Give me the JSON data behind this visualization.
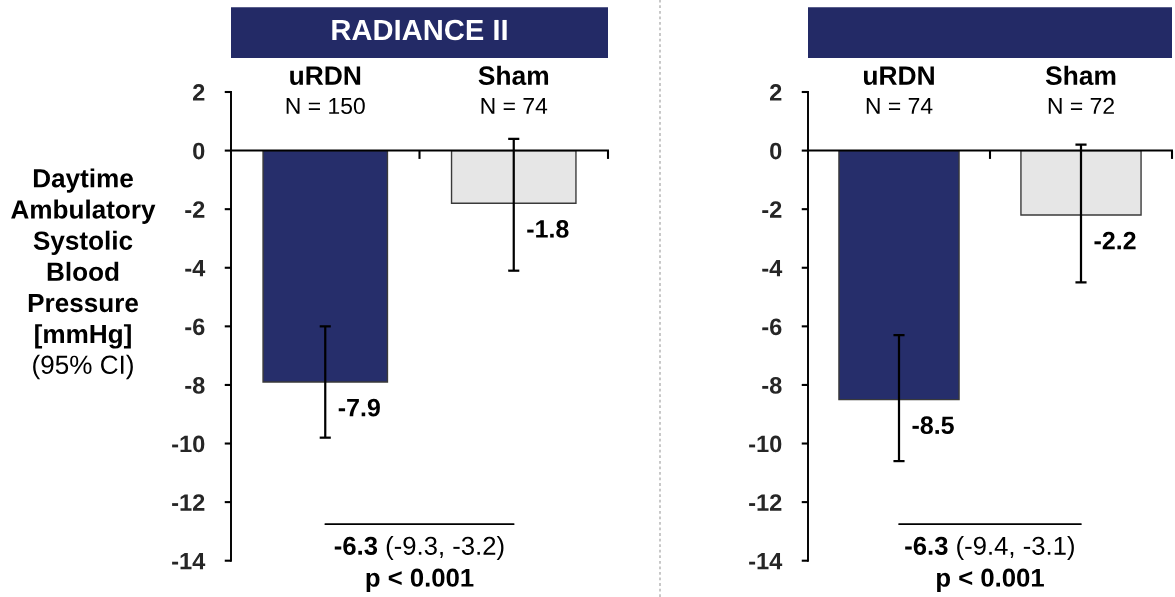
{
  "chart_data": [
    {
      "type": "bar",
      "title": "RADIANCE II",
      "ylabel": "Daytime\nAmbulatory\nSystolic\nBlood\nPressure\n[mmHg]\n(95% CI)",
      "categories": [
        "uRDN\nN = 150",
        "Sham\nN = 74"
      ],
      "values": [
        -7.9,
        -1.8
      ],
      "colors": [
        "#262e6b",
        "#e6e6e6"
      ],
      "errors": [
        [
          -9.8,
          -6.0
        ],
        [
          -4.1,
          0.4
        ]
      ],
      "data_labels": true,
      "ylim": [
        -14,
        2
      ],
      "yticks": [
        -14,
        -12,
        -10,
        -8,
        -6,
        -4,
        -2,
        0,
        2
      ],
      "annotations": [
        "-6.3",
        "(-9.3, -3.2)",
        "p < 0.001"
      ]
    },
    {
      "type": "bar",
      "categories": [
        "uRDN\nN = 74",
        "Sham\nN = 72"
      ],
      "values": [
        -8.5,
        -2.2
      ],
      "colors": [
        "#262e6b",
        "#e6e6e6"
      ],
      "errors": [
        [
          -10.6,
          -6.3
        ],
        [
          -4.5,
          0.2
        ]
      ],
      "data_labels": true,
      "ylim": [
        -14,
        2
      ],
      "yticks": [
        -14,
        -12,
        -10,
        -8,
        -6,
        -4,
        -2,
        0,
        2
      ],
      "annotations": [
        "-6.3",
        "(-9.4, -3.1)",
        "p < 0.001"
      ]
    }
  ]
}
